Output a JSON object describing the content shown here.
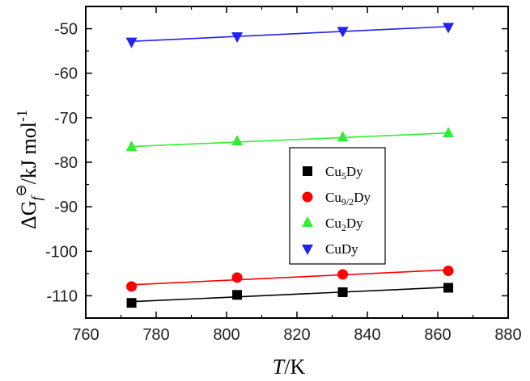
{
  "chart_data": {
    "type": "scatter",
    "title": "",
    "xlabel": {
      "italic": "T",
      "rest": "/K"
    },
    "ylabel": {
      "delta": "ΔG",
      "sub": "f",
      "sup": "⊖",
      "rest": "/kJ mol",
      "exp": "-1"
    },
    "xlim": [
      760,
      880
    ],
    "ylim": [
      -115,
      -45
    ],
    "xticks": [
      760,
      780,
      800,
      820,
      840,
      860,
      880
    ],
    "yticks": [
      -110,
      -100,
      -90,
      -80,
      -70,
      -60,
      -50
    ],
    "legend_position": "center-right",
    "series": [
      {
        "name": "Cu5Dy",
        "label_base": "Cu",
        "label_sub": "5",
        "label_tail": "Dy",
        "marker": "square",
        "color": "#000000",
        "line_color": "#000000",
        "x": [
          773,
          803,
          833,
          863
        ],
        "y": [
          -111.6,
          -109.8,
          -109.2,
          -108.2
        ]
      },
      {
        "name": "Cu9/2Dy",
        "label_base": "Cu",
        "label_sub": "9/2",
        "label_tail": "Dy",
        "marker": "circle",
        "color": "#ff0000",
        "line_color": "#ff0000",
        "x": [
          773,
          803,
          833,
          863
        ],
        "y": [
          -107.9,
          -105.9,
          -105.2,
          -104.4
        ]
      },
      {
        "name": "Cu2Dy",
        "label_base": "Cu",
        "label_sub": "2",
        "label_tail": "Dy",
        "marker": "triangle-up",
        "color": "#33ee33",
        "line_color": "#33ee33",
        "x": [
          773,
          803,
          833,
          863
        ],
        "y": [
          -76.6,
          -75.3,
          -74.4,
          -73.5
        ]
      },
      {
        "name": "CuDy",
        "label_base": "CuDy",
        "label_sub": "",
        "label_tail": "",
        "marker": "triangle-down",
        "color": "#2222ee",
        "line_color": "#2222ee",
        "x": [
          773,
          803,
          833,
          863
        ],
        "y": [
          -52.9,
          -51.7,
          -50.5,
          -49.6
        ]
      }
    ]
  }
}
